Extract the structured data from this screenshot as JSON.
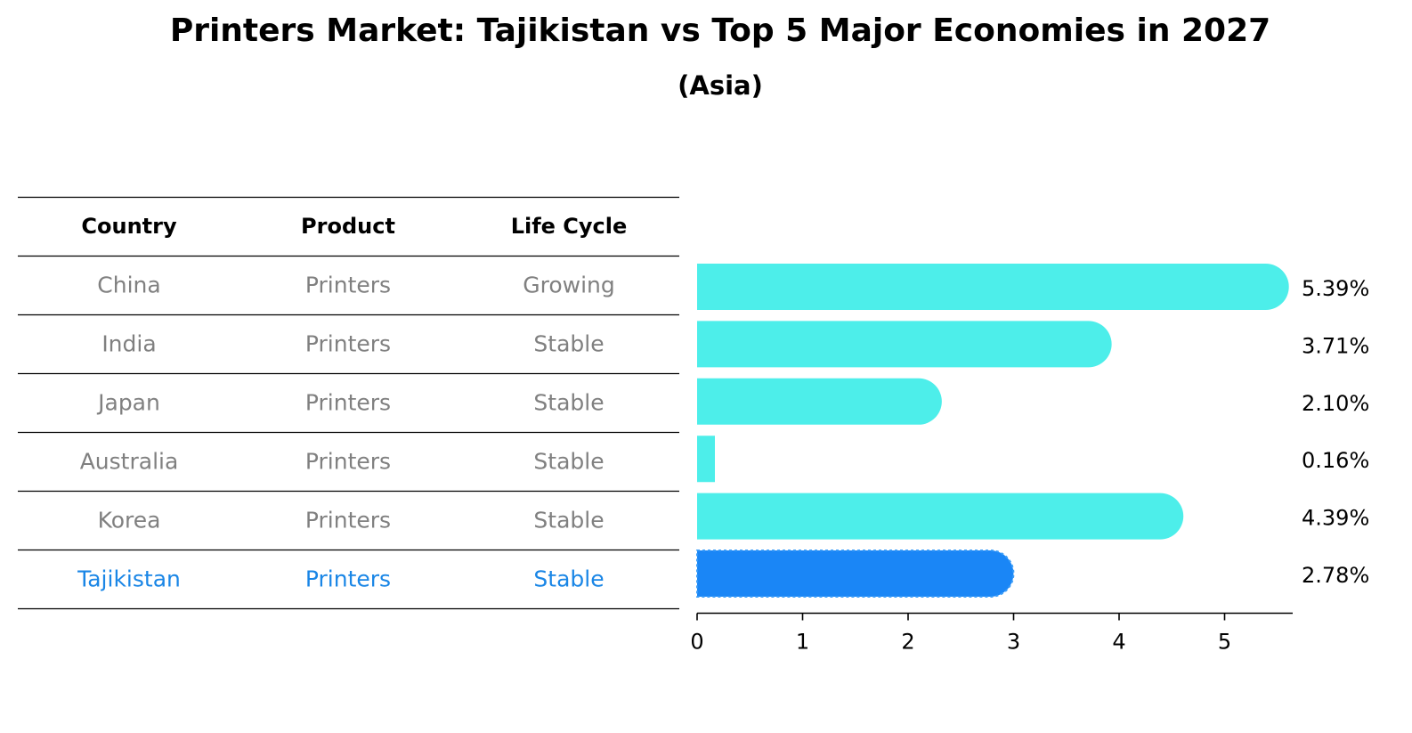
{
  "chart_data": {
    "type": "bar",
    "orientation": "horizontal",
    "title": "Printers Market: Tajikistan vs Top 5 Major Economies in 2027",
    "subtitle": "(Asia)",
    "table": {
      "columns": [
        "Country",
        "Product",
        "Life Cycle"
      ],
      "rows": [
        [
          "China",
          "Printers",
          "Growing"
        ],
        [
          "India",
          "Printers",
          "Stable"
        ],
        [
          "Japan",
          "Printers",
          "Stable"
        ],
        [
          "Australia",
          "Printers",
          "Stable"
        ],
        [
          "Korea",
          "Printers",
          "Stable"
        ],
        [
          "Tajikistan",
          "Printers",
          "Stable"
        ]
      ],
      "highlight_row": 5
    },
    "categories": [
      "China",
      "India",
      "Japan",
      "Australia",
      "Korea",
      "Tajikistan"
    ],
    "values": [
      5.39,
      3.71,
      2.1,
      0.16,
      4.39,
      2.78
    ],
    "value_labels": [
      "5.39%",
      "3.71%",
      "2.10%",
      "0.16%",
      "4.39%",
      "2.78%"
    ],
    "xlim": [
      0,
      5.66
    ],
    "xticks": [
      0,
      1,
      2,
      3,
      4,
      5
    ],
    "xlabel": "",
    "ylabel": "",
    "colors": {
      "bar": "#4deeea",
      "highlight_bar": "#1a86f6",
      "highlight_text": "#1a86e6",
      "text_muted": "#808080",
      "rule": "#000000"
    }
  }
}
